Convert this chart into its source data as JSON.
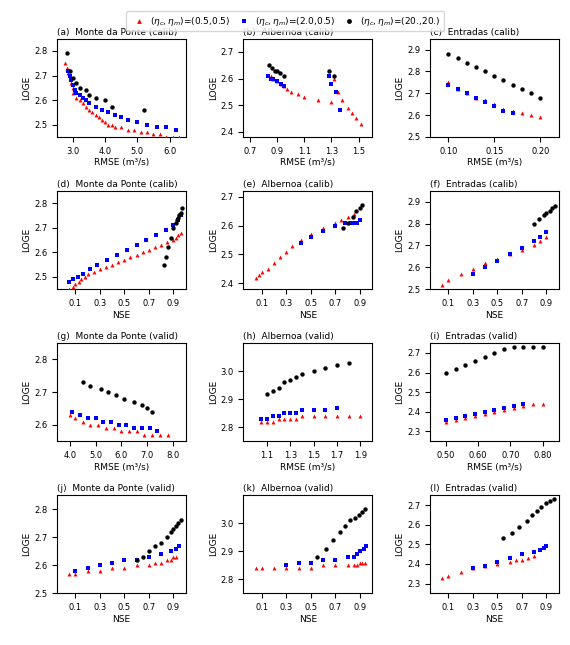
{
  "title": "",
  "legend": {
    "labels": [
      "(η_c,η_m)=(0.5,0.5)",
      "(η_c,η_m)=(2.0,0.5)",
      "(η_c,η_m)=(20.,20.)"
    ],
    "colors": [
      "red",
      "blue",
      "black"
    ],
    "markers": [
      "^",
      "s",
      "o"
    ]
  },
  "subplots": [
    {
      "label": "(a)",
      "title": "Monte da Ponte (calib)",
      "xlabel": "RMSE (m³/s)",
      "ylabel": "LOGE",
      "xlim": [
        2.5,
        6.5
      ],
      "ylim": [
        2.45,
        2.85
      ],
      "xticks": [
        3.0,
        4.0,
        5.0,
        6.0
      ],
      "yticks": [
        2.5,
        2.6,
        2.7,
        2.8
      ],
      "red_x": [
        2.75,
        2.8,
        2.85,
        2.9,
        2.95,
        3.0,
        3.0,
        3.1,
        3.2,
        3.3,
        3.4,
        3.5,
        3.6,
        3.7,
        3.8,
        3.9,
        4.0,
        4.1,
        4.2,
        4.3,
        4.5,
        4.7,
        4.9,
        5.1,
        5.3,
        5.5,
        5.7,
        5.9,
        6.1,
        6.3
      ],
      "red_y": [
        2.75,
        2.73,
        2.71,
        2.69,
        2.67,
        2.65,
        2.63,
        2.61,
        2.6,
        2.59,
        2.57,
        2.56,
        2.55,
        2.54,
        2.53,
        2.52,
        2.51,
        2.5,
        2.5,
        2.49,
        2.49,
        2.48,
        2.48,
        2.47,
        2.47,
        2.46,
        2.46,
        2.45,
        2.45,
        2.45
      ],
      "blue_x": [
        2.85,
        2.9,
        2.95,
        3.0,
        3.05,
        3.1,
        3.2,
        3.3,
        3.4,
        3.5,
        3.7,
        3.9,
        4.1,
        4.3,
        4.5,
        4.7,
        5.0,
        5.3,
        5.6,
        5.9,
        6.2
      ],
      "blue_y": [
        2.72,
        2.7,
        2.68,
        2.66,
        2.64,
        2.63,
        2.62,
        2.61,
        2.6,
        2.59,
        2.57,
        2.56,
        2.55,
        2.54,
        2.53,
        2.52,
        2.51,
        2.5,
        2.49,
        2.49,
        2.48
      ],
      "black_x": [
        2.8,
        2.9,
        3.0,
        3.1,
        3.2,
        3.4,
        3.5,
        3.7,
        4.0,
        4.2,
        5.2
      ],
      "black_y": [
        2.79,
        2.72,
        2.69,
        2.67,
        2.65,
        2.64,
        2.62,
        2.61,
        2.6,
        2.57,
        2.56
      ]
    },
    {
      "label": "(b)",
      "title": "Albernoa (calib)",
      "xlabel": "RMSE (m³/s)",
      "ylabel": "LOGE",
      "xlim": [
        0.65,
        1.6
      ],
      "ylim": [
        2.38,
        2.75
      ],
      "xticks": [
        0.7,
        0.9,
        1.1,
        1.3,
        1.5
      ],
      "yticks": [
        2.4,
        2.5,
        2.6,
        2.7
      ],
      "red_x": [
        0.85,
        0.87,
        0.9,
        0.93,
        0.95,
        0.97,
        1.0,
        1.05,
        1.1,
        1.2,
        1.3,
        1.32,
        1.35,
        1.38,
        1.42,
        1.45,
        1.48,
        1.52
      ],
      "red_y": [
        2.61,
        2.6,
        2.59,
        2.58,
        2.57,
        2.56,
        2.55,
        2.54,
        2.53,
        2.52,
        2.51,
        2.6,
        2.55,
        2.52,
        2.49,
        2.47,
        2.45,
        2.43
      ],
      "blue_x": [
        0.83,
        0.85,
        0.87,
        0.9,
        0.93,
        0.95,
        1.28,
        1.3,
        1.33,
        1.36
      ],
      "blue_y": [
        2.61,
        2.6,
        2.6,
        2.59,
        2.58,
        2.57,
        2.61,
        2.58,
        2.55,
        2.48
      ],
      "black_x": [
        0.84,
        0.86,
        0.88,
        0.9,
        0.92,
        0.95,
        1.28,
        1.32
      ],
      "black_y": [
        2.65,
        2.64,
        2.63,
        2.63,
        2.62,
        2.61,
        2.63,
        2.61
      ]
    },
    {
      "label": "(c)",
      "title": "Entradas (calib)",
      "xlabel": "RMSE (m³/s)",
      "ylabel": "LOGE",
      "xlim": [
        0.08,
        0.22
      ],
      "ylim": [
        2.5,
        2.95
      ],
      "xticks": [
        0.1,
        0.15,
        0.2
      ],
      "yticks": [
        2.5,
        2.6,
        2.7,
        2.8,
        2.9
      ],
      "red_x": [
        0.1,
        0.11,
        0.12,
        0.13,
        0.14,
        0.15,
        0.16,
        0.17,
        0.18,
        0.19,
        0.2
      ],
      "red_y": [
        2.75,
        2.72,
        2.7,
        2.68,
        2.67,
        2.65,
        2.63,
        2.62,
        2.61,
        2.6,
        2.59
      ],
      "blue_x": [
        0.1,
        0.11,
        0.12,
        0.13,
        0.14,
        0.15,
        0.16,
        0.17
      ],
      "blue_y": [
        2.74,
        2.72,
        2.7,
        2.68,
        2.66,
        2.64,
        2.62,
        2.61
      ],
      "black_x": [
        0.1,
        0.11,
        0.12,
        0.13,
        0.14,
        0.15,
        0.16,
        0.17,
        0.18,
        0.19,
        0.2
      ],
      "black_y": [
        2.88,
        2.86,
        2.84,
        2.82,
        2.8,
        2.78,
        2.76,
        2.74,
        2.72,
        2.7,
        2.68
      ]
    },
    {
      "label": "(d)",
      "title": "Monte da Ponte (calib)",
      "xlabel": "NSE",
      "ylabel": "LOGE",
      "xlim": [
        -0.05,
        1.0
      ],
      "ylim": [
        2.45,
        2.85
      ],
      "xticks": [
        0.1,
        0.3,
        0.5,
        0.7,
        0.9
      ],
      "yticks": [
        2.5,
        2.6,
        2.7,
        2.8
      ],
      "red_x": [
        0.05,
        0.08,
        0.1,
        0.13,
        0.15,
        0.18,
        0.2,
        0.25,
        0.3,
        0.35,
        0.4,
        0.45,
        0.5,
        0.55,
        0.6,
        0.65,
        0.7,
        0.75,
        0.8,
        0.85,
        0.9,
        0.92,
        0.94,
        0.96
      ],
      "red_y": [
        2.45,
        2.46,
        2.47,
        2.48,
        2.49,
        2.5,
        2.51,
        2.52,
        2.53,
        2.54,
        2.55,
        2.56,
        2.57,
        2.58,
        2.59,
        2.6,
        2.61,
        2.62,
        2.63,
        2.64,
        2.65,
        2.66,
        2.67,
        2.68
      ],
      "blue_x": [
        0.05,
        0.08,
        0.12,
        0.16,
        0.22,
        0.28,
        0.36,
        0.44,
        0.52,
        0.6,
        0.68,
        0.76,
        0.84,
        0.9,
        0.94,
        0.96
      ],
      "blue_y": [
        2.48,
        2.49,
        2.5,
        2.51,
        2.53,
        2.55,
        2.57,
        2.59,
        2.61,
        2.63,
        2.65,
        2.67,
        2.69,
        2.71,
        2.73,
        2.75
      ],
      "black_x": [
        0.82,
        0.84,
        0.86,
        0.88,
        0.9,
        0.92,
        0.93,
        0.94,
        0.95,
        0.96,
        0.97
      ],
      "black_y": [
        2.55,
        2.58,
        2.62,
        2.66,
        2.7,
        2.72,
        2.73,
        2.74,
        2.75,
        2.76,
        2.78
      ]
    },
    {
      "label": "(e)",
      "title": "Albernoa (calib)",
      "xlabel": "NSE",
      "ylabel": "LOGE",
      "xlim": [
        -0.05,
        1.0
      ],
      "ylim": [
        2.38,
        2.72
      ],
      "xticks": [
        0.1,
        0.3,
        0.5,
        0.7,
        0.9
      ],
      "yticks": [
        2.4,
        2.5,
        2.6,
        2.7
      ],
      "red_x": [
        0.05,
        0.08,
        0.1,
        0.15,
        0.2,
        0.25,
        0.3,
        0.35,
        0.42,
        0.5,
        0.6,
        0.7,
        0.75,
        0.8,
        0.85
      ],
      "red_y": [
        2.42,
        2.43,
        2.44,
        2.45,
        2.47,
        2.49,
        2.51,
        2.53,
        2.55,
        2.57,
        2.59,
        2.61,
        2.62,
        2.63,
        2.64
      ],
      "blue_x": [
        0.42,
        0.5,
        0.6,
        0.7,
        0.78,
        0.83,
        0.86,
        0.88,
        0.9
      ],
      "blue_y": [
        2.54,
        2.56,
        2.58,
        2.6,
        2.61,
        2.61,
        2.61,
        2.61,
        2.62
      ],
      "black_x": [
        0.76,
        0.8,
        0.84,
        0.87,
        0.9,
        0.92
      ],
      "black_y": [
        2.59,
        2.61,
        2.63,
        2.65,
        2.66,
        2.67
      ]
    },
    {
      "label": "(f)",
      "title": "Entradas (calib)",
      "xlabel": "NSE",
      "ylabel": "LOGE",
      "xlim": [
        -0.05,
        1.0
      ],
      "ylim": [
        2.5,
        2.95
      ],
      "xticks": [
        0.1,
        0.3,
        0.5,
        0.7,
        0.9
      ],
      "yticks": [
        2.5,
        2.6,
        2.7,
        2.8,
        2.9
      ],
      "red_x": [
        0.05,
        0.1,
        0.2,
        0.3,
        0.4,
        0.5,
        0.6,
        0.7,
        0.8,
        0.85,
        0.9
      ],
      "red_y": [
        2.52,
        2.54,
        2.57,
        2.59,
        2.62,
        2.64,
        2.66,
        2.68,
        2.7,
        2.72,
        2.74
      ],
      "blue_x": [
        0.3,
        0.4,
        0.5,
        0.6,
        0.7,
        0.8,
        0.85,
        0.9
      ],
      "blue_y": [
        2.57,
        2.6,
        2.63,
        2.66,
        2.69,
        2.72,
        2.74,
        2.76
      ],
      "black_x": [
        0.8,
        0.84,
        0.88,
        0.9,
        0.93,
        0.95,
        0.97
      ],
      "black_y": [
        2.8,
        2.82,
        2.84,
        2.85,
        2.86,
        2.87,
        2.88
      ]
    },
    {
      "label": "(g)",
      "title": "Monte da Ponte (valid)",
      "xlabel": "RMSE (m³/s)",
      "ylabel": "LOGE",
      "xlim": [
        3.5,
        8.5
      ],
      "ylim": [
        2.55,
        2.85
      ],
      "xticks": [
        4.0,
        5.0,
        6.0,
        7.0,
        8.0
      ],
      "yticks": [
        2.6,
        2.7,
        2.8
      ],
      "red_x": [
        4.0,
        4.2,
        4.5,
        4.8,
        5.1,
        5.4,
        5.7,
        6.0,
        6.3,
        6.6,
        6.9,
        7.2,
        7.5,
        7.8
      ],
      "red_y": [
        2.63,
        2.62,
        2.61,
        2.6,
        2.6,
        2.59,
        2.59,
        2.58,
        2.58,
        2.58,
        2.57,
        2.57,
        2.57,
        2.57
      ],
      "blue_x": [
        4.1,
        4.4,
        4.7,
        5.0,
        5.3,
        5.6,
        5.9,
        6.2,
        6.5,
        6.8,
        7.1,
        7.4
      ],
      "blue_y": [
        2.64,
        2.63,
        2.62,
        2.62,
        2.61,
        2.61,
        2.6,
        2.6,
        2.59,
        2.59,
        2.59,
        2.58
      ],
      "black_x": [
        4.5,
        4.8,
        5.2,
        5.5,
        5.8,
        6.1,
        6.5,
        6.8,
        7.0,
        7.2
      ],
      "black_y": [
        2.73,
        2.72,
        2.71,
        2.7,
        2.69,
        2.68,
        2.67,
        2.66,
        2.65,
        2.64
      ]
    },
    {
      "label": "(h)",
      "title": "Albernoa (valid)",
      "xlabel": "RMSE (m³/s)",
      "ylabel": "LOGE",
      "xlim": [
        0.9,
        2.0
      ],
      "ylim": [
        2.75,
        3.1
      ],
      "xticks": [
        1.1,
        1.3,
        1.5,
        1.7,
        1.9
      ],
      "yticks": [
        2.8,
        2.9,
        3.0
      ],
      "red_x": [
        1.05,
        1.1,
        1.15,
        1.2,
        1.25,
        1.3,
        1.35,
        1.4,
        1.5,
        1.6,
        1.7,
        1.8,
        1.9
      ],
      "red_y": [
        2.82,
        2.82,
        2.82,
        2.83,
        2.83,
        2.83,
        2.83,
        2.84,
        2.84,
        2.84,
        2.84,
        2.84,
        2.84
      ],
      "blue_x": [
        1.05,
        1.1,
        1.15,
        1.2,
        1.25,
        1.3,
        1.35,
        1.4,
        1.5,
        1.6,
        1.7
      ],
      "blue_y": [
        2.83,
        2.83,
        2.84,
        2.84,
        2.85,
        2.85,
        2.85,
        2.86,
        2.86,
        2.86,
        2.87
      ],
      "black_x": [
        1.1,
        1.15,
        1.2,
        1.25,
        1.3,
        1.35,
        1.4,
        1.5,
        1.6,
        1.7,
        1.8
      ],
      "black_y": [
        2.92,
        2.93,
        2.94,
        2.96,
        2.97,
        2.98,
        2.99,
        3.0,
        3.01,
        3.02,
        3.03
      ]
    },
    {
      "label": "(i)",
      "title": "Entradas (valid)",
      "xlabel": "RMSE (m³/s)",
      "ylabel": "LOGE",
      "xlim": [
        0.45,
        0.85
      ],
      "ylim": [
        2.25,
        2.75
      ],
      "xticks": [
        0.5,
        0.6,
        0.7,
        0.8
      ],
      "yticks": [
        2.3,
        2.4,
        2.5,
        2.6,
        2.7
      ],
      "red_x": [
        0.5,
        0.53,
        0.56,
        0.59,
        0.62,
        0.65,
        0.68,
        0.71,
        0.74,
        0.77,
        0.8
      ],
      "red_y": [
        2.35,
        2.36,
        2.37,
        2.38,
        2.39,
        2.4,
        2.41,
        2.42,
        2.43,
        2.44,
        2.44
      ],
      "blue_x": [
        0.5,
        0.53,
        0.56,
        0.59,
        0.62,
        0.65,
        0.68,
        0.71,
        0.74
      ],
      "blue_y": [
        2.36,
        2.37,
        2.38,
        2.39,
        2.4,
        2.41,
        2.42,
        2.43,
        2.44
      ],
      "black_x": [
        0.5,
        0.53,
        0.56,
        0.59,
        0.62,
        0.65,
        0.68,
        0.71,
        0.74,
        0.77,
        0.8
      ],
      "black_y": [
        2.6,
        2.62,
        2.64,
        2.66,
        2.68,
        2.7,
        2.72,
        2.73,
        2.73,
        2.73,
        2.73
      ]
    },
    {
      "label": "(j)",
      "title": "Monte da Ponte (valid)",
      "xlabel": "NSE",
      "ylabel": "LOGE",
      "xlim": [
        -0.05,
        1.0
      ],
      "ylim": [
        2.5,
        2.85
      ],
      "xticks": [
        0.1,
        0.3,
        0.5,
        0.7,
        0.9
      ],
      "yticks": [
        2.5,
        2.6,
        2.7,
        2.8
      ],
      "red_x": [
        0.05,
        0.1,
        0.2,
        0.3,
        0.4,
        0.5,
        0.6,
        0.7,
        0.75,
        0.8,
        0.85,
        0.88,
        0.9,
        0.92
      ],
      "red_y": [
        2.57,
        2.57,
        2.58,
        2.58,
        2.59,
        2.59,
        2.6,
        2.6,
        2.61,
        2.61,
        2.62,
        2.62,
        2.63,
        2.63
      ],
      "blue_x": [
        0.1,
        0.2,
        0.3,
        0.4,
        0.5,
        0.6,
        0.7,
        0.8,
        0.88,
        0.92,
        0.95
      ],
      "blue_y": [
        2.58,
        2.59,
        2.6,
        2.61,
        2.62,
        2.62,
        2.63,
        2.64,
        2.65,
        2.66,
        2.67
      ],
      "black_x": [
        0.6,
        0.65,
        0.7,
        0.75,
        0.8,
        0.85,
        0.88,
        0.9,
        0.92,
        0.94,
        0.96
      ],
      "black_y": [
        2.62,
        2.63,
        2.65,
        2.67,
        2.68,
        2.7,
        2.72,
        2.73,
        2.74,
        2.75,
        2.76
      ]
    },
    {
      "label": "(k)",
      "title": "Albernoa (valid)",
      "xlabel": "NSE",
      "ylabel": "LOGE",
      "xlim": [
        -0.05,
        1.0
      ],
      "ylim": [
        2.75,
        3.1
      ],
      "xticks": [
        0.1,
        0.3,
        0.5,
        0.7,
        0.9
      ],
      "yticks": [
        2.8,
        2.9,
        3.0
      ],
      "red_x": [
        0.05,
        0.1,
        0.2,
        0.3,
        0.4,
        0.5,
        0.6,
        0.7,
        0.8,
        0.85,
        0.88,
        0.9,
        0.92,
        0.94
      ],
      "red_y": [
        2.84,
        2.84,
        2.84,
        2.84,
        2.84,
        2.84,
        2.85,
        2.85,
        2.85,
        2.85,
        2.85,
        2.86,
        2.86,
        2.86
      ],
      "blue_x": [
        0.3,
        0.4,
        0.5,
        0.6,
        0.7,
        0.8,
        0.85,
        0.88,
        0.9,
        0.93,
        0.95
      ],
      "blue_y": [
        2.85,
        2.86,
        2.86,
        2.87,
        2.87,
        2.88,
        2.88,
        2.89,
        2.9,
        2.91,
        2.92
      ],
      "black_x": [
        0.55,
        0.62,
        0.68,
        0.74,
        0.78,
        0.82,
        0.86,
        0.89,
        0.92,
        0.94
      ],
      "black_y": [
        2.88,
        2.91,
        2.94,
        2.97,
        2.99,
        3.01,
        3.02,
        3.03,
        3.04,
        3.05
      ]
    },
    {
      "label": "(l)",
      "title": "Entradas (valid)",
      "xlabel": "NSE",
      "ylabel": "LOGE",
      "xlim": [
        -0.05,
        1.0
      ],
      "ylim": [
        2.25,
        2.75
      ],
      "xticks": [
        0.1,
        0.3,
        0.5,
        0.7,
        0.9
      ],
      "yticks": [
        2.3,
        2.4,
        2.5,
        2.6,
        2.7
      ],
      "red_x": [
        0.05,
        0.1,
        0.2,
        0.3,
        0.4,
        0.5,
        0.6,
        0.65,
        0.7,
        0.75,
        0.8
      ],
      "red_y": [
        2.33,
        2.34,
        2.36,
        2.38,
        2.39,
        2.4,
        2.41,
        2.42,
        2.42,
        2.43,
        2.44
      ],
      "blue_x": [
        0.3,
        0.4,
        0.5,
        0.6,
        0.7,
        0.8,
        0.85,
        0.88,
        0.9
      ],
      "blue_y": [
        2.38,
        2.39,
        2.41,
        2.43,
        2.45,
        2.46,
        2.47,
        2.48,
        2.49
      ],
      "black_x": [
        0.55,
        0.62,
        0.68,
        0.74,
        0.78,
        0.82,
        0.86,
        0.9,
        0.93,
        0.96
      ],
      "black_y": [
        2.53,
        2.56,
        2.59,
        2.62,
        2.65,
        2.67,
        2.69,
        2.71,
        2.72,
        2.73
      ]
    }
  ]
}
